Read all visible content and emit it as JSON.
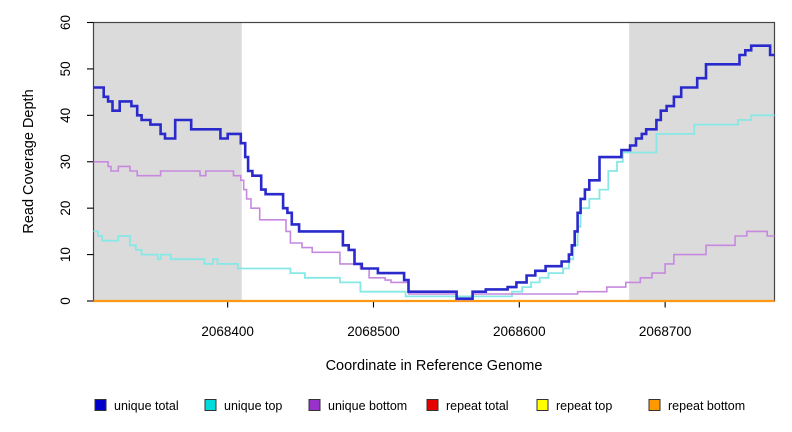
{
  "figure": {
    "background_color": "#FFFFFF",
    "plot_border_color": "#454545",
    "shaded_region_color": "#DBDBDB",
    "axis_color": "#000000"
  },
  "chart_data": {
    "type": "line",
    "step": true,
    "title": "",
    "xlabel": "Coordinate in Reference Genome",
    "ylabel": "Read Coverage Depth",
    "xlim": [
      2068308,
      2068775
    ],
    "ylim": [
      0,
      60
    ],
    "x_ticks": [
      2068400,
      2068500,
      2068600,
      2068700
    ],
    "x_tick_labels": [
      "2068400",
      "2068500",
      "2068600",
      "2068700"
    ],
    "y_ticks": [
      0,
      10,
      20,
      30,
      40,
      50,
      60
    ],
    "y_tick_labels": [
      "0",
      "10",
      "20",
      "30",
      "40",
      "50",
      "60"
    ],
    "grid": false,
    "legend_position": "bottom",
    "shaded_regions": [
      {
        "name": "left-gray-band",
        "x0": 2068308,
        "x1": 2068410
      },
      {
        "name": "right-gray-band",
        "x0": 2068675,
        "x1": 2068775
      }
    ],
    "series": [
      {
        "name": "unique total",
        "legend_color": "#0000CC",
        "line_color": "#2A2ACC",
        "line_width": 2.6,
        "points": [
          [
            2068308,
            46
          ],
          [
            2068315,
            44
          ],
          [
            2068318,
            43
          ],
          [
            2068321,
            41
          ],
          [
            2068326,
            43
          ],
          [
            2068334,
            42
          ],
          [
            2068338,
            40
          ],
          [
            2068341,
            39
          ],
          [
            2068347,
            38
          ],
          [
            2068354,
            36
          ],
          [
            2068357,
            35
          ],
          [
            2068364,
            39
          ],
          [
            2068375,
            37
          ],
          [
            2068395,
            35
          ],
          [
            2068400,
            36
          ],
          [
            2068409,
            34
          ],
          [
            2068412,
            31
          ],
          [
            2068414,
            28
          ],
          [
            2068417,
            27
          ],
          [
            2068423,
            24
          ],
          [
            2068426,
            23
          ],
          [
            2068438,
            20
          ],
          [
            2068441,
            19
          ],
          [
            2068444,
            16.5
          ],
          [
            2068449,
            15
          ],
          [
            2068479,
            12
          ],
          [
            2068483,
            11
          ],
          [
            2068487,
            8
          ],
          [
            2068492,
            7
          ],
          [
            2068503,
            6
          ],
          [
            2068521,
            4.5
          ],
          [
            2068524,
            2
          ],
          [
            2068557,
            0.5
          ],
          [
            2068568,
            2
          ],
          [
            2068577,
            2.5
          ],
          [
            2068592,
            3
          ],
          [
            2068598,
            4
          ],
          [
            2068605,
            5.5
          ],
          [
            2068611,
            6.5
          ],
          [
            2068618,
            7.5
          ],
          [
            2068629,
            8.5
          ],
          [
            2068634,
            10
          ],
          [
            2068636,
            12
          ],
          [
            2068638,
            15
          ],
          [
            2068640,
            19
          ],
          [
            2068642,
            22
          ],
          [
            2068645,
            24
          ],
          [
            2068648,
            26
          ],
          [
            2068655,
            31
          ],
          [
            2068670,
            32.5
          ],
          [
            2068676,
            33.5
          ],
          [
            2068680,
            35
          ],
          [
            2068684,
            36
          ],
          [
            2068687,
            37
          ],
          [
            2068694,
            39
          ],
          [
            2068697,
            41
          ],
          [
            2068701,
            42
          ],
          [
            2068706,
            44
          ],
          [
            2068711,
            46
          ],
          [
            2068722,
            48
          ],
          [
            2068728,
            51
          ],
          [
            2068751,
            53
          ],
          [
            2068755,
            54
          ],
          [
            2068759,
            55
          ],
          [
            2068772,
            53
          ],
          [
            2068775,
            53
          ]
        ]
      },
      {
        "name": "unique top",
        "legend_color": "#00DBDB",
        "line_color": "#87E8E5",
        "line_width": 1.8,
        "points": [
          [
            2068308,
            15
          ],
          [
            2068311,
            14
          ],
          [
            2068314,
            13
          ],
          [
            2068325,
            14
          ],
          [
            2068333,
            12
          ],
          [
            2068337,
            11
          ],
          [
            2068341,
            10
          ],
          [
            2068352,
            9
          ],
          [
            2068354,
            10
          ],
          [
            2068361,
            9
          ],
          [
            2068384,
            8
          ],
          [
            2068390,
            9
          ],
          [
            2068393,
            8
          ],
          [
            2068407,
            7
          ],
          [
            2068443,
            6
          ],
          [
            2068453,
            5
          ],
          [
            2068477,
            4
          ],
          [
            2068491,
            2
          ],
          [
            2068522,
            1
          ],
          [
            2068595,
            2
          ],
          [
            2068602,
            3
          ],
          [
            2068608,
            4
          ],
          [
            2068614,
            5
          ],
          [
            2068620,
            6
          ],
          [
            2068630,
            7
          ],
          [
            2068634,
            9
          ],
          [
            2068637,
            12
          ],
          [
            2068640,
            16
          ],
          [
            2068642,
            20
          ],
          [
            2068648,
            22
          ],
          [
            2068655,
            24
          ],
          [
            2068661,
            28
          ],
          [
            2068667,
            30
          ],
          [
            2068671,
            32
          ],
          [
            2068694,
            36
          ],
          [
            2068720,
            38
          ],
          [
            2068750,
            39
          ],
          [
            2068759,
            40
          ],
          [
            2068775,
            40
          ]
        ]
      },
      {
        "name": "unique bottom",
        "legend_color": "#9932CC",
        "line_color": "#C789DF",
        "line_width": 1.6,
        "points": [
          [
            2068308,
            30
          ],
          [
            2068318,
            29
          ],
          [
            2068320,
            28
          ],
          [
            2068325,
            29
          ],
          [
            2068333,
            28
          ],
          [
            2068338,
            27
          ],
          [
            2068354,
            28
          ],
          [
            2068381,
            27
          ],
          [
            2068385,
            28
          ],
          [
            2068404,
            27
          ],
          [
            2068409,
            26
          ],
          [
            2068411,
            24
          ],
          [
            2068413,
            22
          ],
          [
            2068416,
            20
          ],
          [
            2068422,
            17.5
          ],
          [
            2068440,
            15
          ],
          [
            2068443,
            12.5
          ],
          [
            2068451,
            11.5
          ],
          [
            2068458,
            10.5
          ],
          [
            2068477,
            8
          ],
          [
            2068491,
            7
          ],
          [
            2068497,
            5
          ],
          [
            2068508,
            4.5
          ],
          [
            2068512,
            4
          ],
          [
            2068524,
            1.5
          ],
          [
            2068557,
            0.3
          ],
          [
            2068568,
            1.5
          ],
          [
            2068640,
            2
          ],
          [
            2068660,
            3
          ],
          [
            2068673,
            4
          ],
          [
            2068683,
            5
          ],
          [
            2068691,
            6
          ],
          [
            2068700,
            8
          ],
          [
            2068706,
            10
          ],
          [
            2068728,
            12
          ],
          [
            2068748,
            14
          ],
          [
            2068756,
            15
          ],
          [
            2068770,
            14
          ],
          [
            2068775,
            14
          ]
        ]
      },
      {
        "name": "repeat total",
        "legend_color": "#E60000",
        "line_color": "#CC0000",
        "line_width": 1.6,
        "points": [
          [
            2068308,
            0
          ],
          [
            2068775,
            0
          ]
        ]
      },
      {
        "name": "repeat top",
        "legend_color": "#FFFF00",
        "line_color": "#EEEE00",
        "line_width": 1.6,
        "points": [
          [
            2068308,
            0
          ],
          [
            2068775,
            0
          ]
        ]
      },
      {
        "name": "repeat bottom",
        "legend_color": "#FF9900",
        "line_color": "#FF9913",
        "line_width": 2.2,
        "points": [
          [
            2068308,
            0
          ],
          [
            2068775,
            0
          ]
        ]
      }
    ]
  }
}
